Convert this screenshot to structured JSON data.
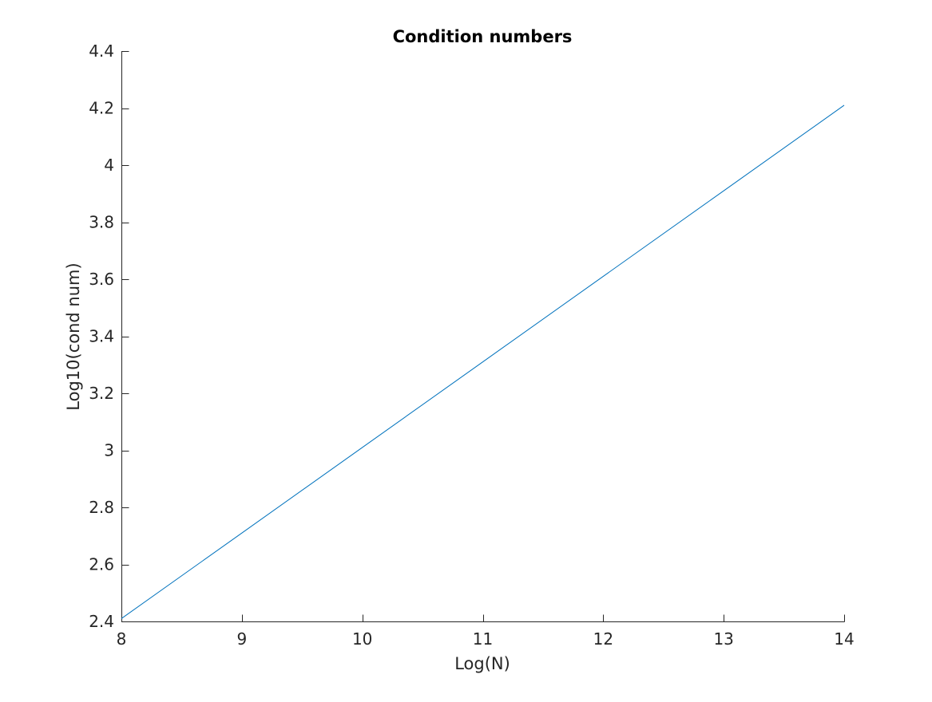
{
  "chart_data": {
    "type": "line",
    "title": "Condition numbers",
    "xlabel": "Log(N)",
    "ylabel": "Log10(cond num)",
    "xlim": [
      8,
      14
    ],
    "ylim": [
      2.4,
      4.4
    ],
    "xticks": [
      8,
      9,
      10,
      11,
      12,
      13,
      14
    ],
    "yticks": [
      2.4,
      2.6,
      2.8,
      3,
      3.2,
      3.4,
      3.6,
      3.8,
      4,
      4.2,
      4.4
    ],
    "xtick_labels": [
      "8",
      "9",
      "10",
      "11",
      "12",
      "13",
      "14"
    ],
    "ytick_labels": [
      "2.4",
      "2.6",
      "2.8",
      "3",
      "3.2",
      "3.4",
      "3.6",
      "3.8",
      "4",
      "4.2",
      "4.4"
    ],
    "grid": false,
    "series": [
      {
        "color": "#0072bd",
        "x": [
          8,
          9,
          10,
          11,
          12,
          13,
          14
        ],
        "y": [
          2.41,
          2.71,
          3.01,
          3.31,
          3.61,
          3.91,
          4.21
        ]
      }
    ]
  }
}
